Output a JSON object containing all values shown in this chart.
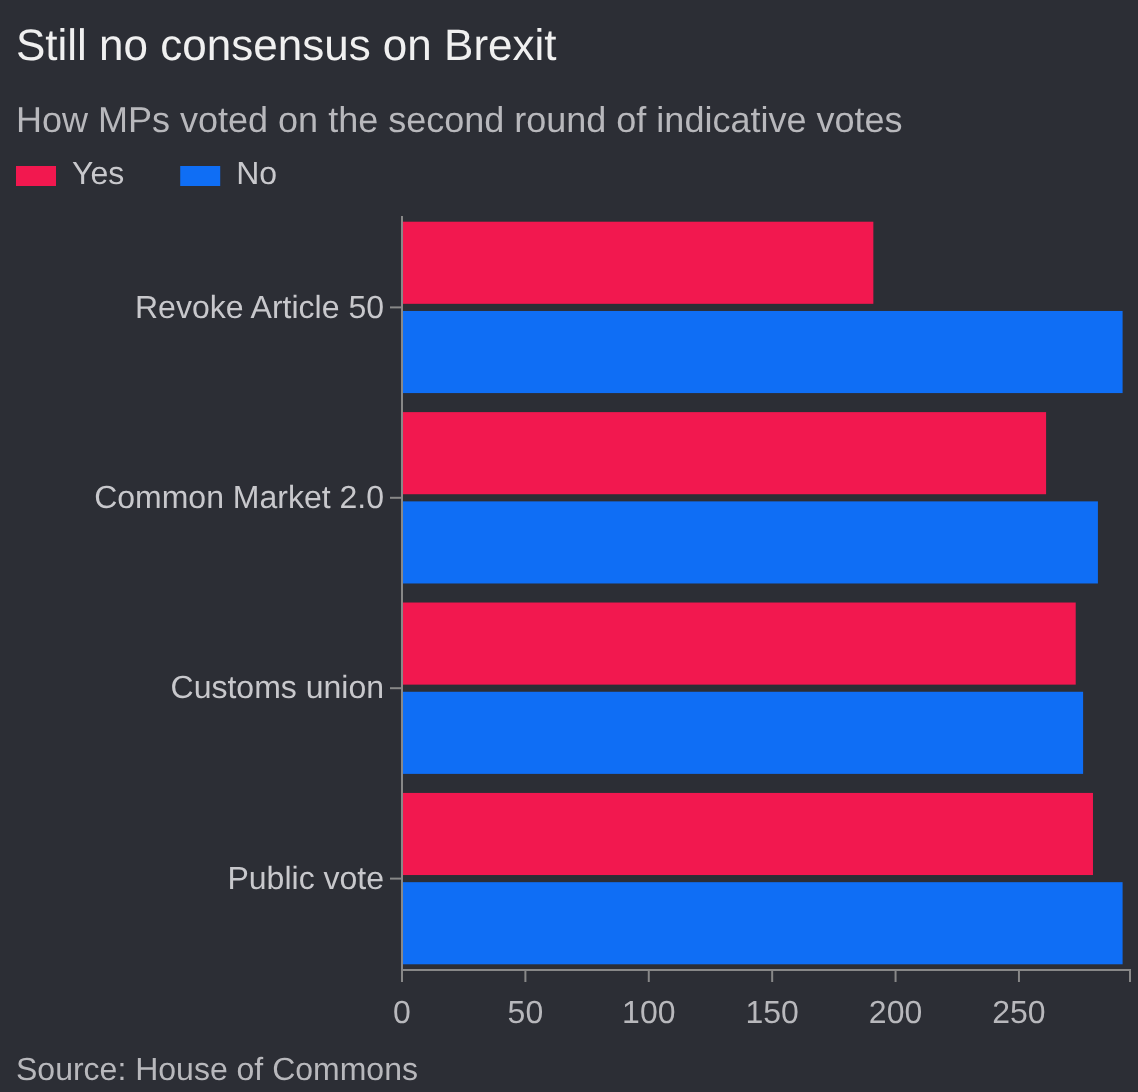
{
  "chart_data": {
    "type": "bar",
    "orientation": "horizontal",
    "title": "Still no consensus on Brexit",
    "subtitle": "How MPs voted on the second round of indicative votes",
    "categories": [
      "Revoke Article 50",
      "Common Market 2.0",
      "Customs union",
      "Public vote"
    ],
    "series": [
      {
        "name": "Yes",
        "color": "#f2184f",
        "values": [
          191,
          261,
          273,
          280
        ]
      },
      {
        "name": "No",
        "color": "#0f6ef5",
        "values": [
          292,
          282,
          276,
          292
        ]
      }
    ],
    "xlim": [
      0,
      295
    ],
    "xticks": [
      0,
      50,
      100,
      150,
      200,
      250
    ],
    "grid": false,
    "legend": "top left",
    "annotations": [
      "Source: House of Commons"
    ]
  }
}
